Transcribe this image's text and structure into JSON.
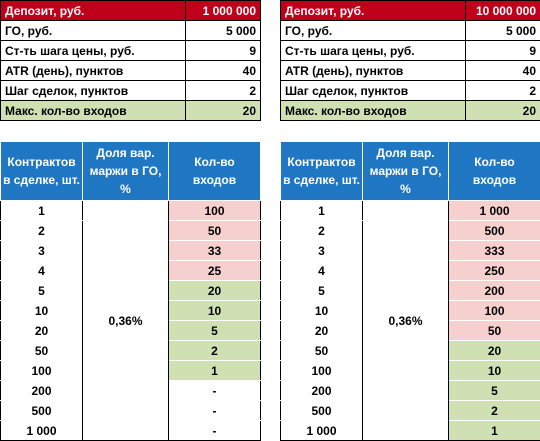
{
  "left": {
    "params": [
      {
        "label": "Депозит, руб.",
        "value": "1 000 000",
        "style": "red"
      },
      {
        "label": "ГО, руб.",
        "value": "5 000",
        "style": "white"
      },
      {
        "label": "Ст-ть шага цены, руб.",
        "value": "9",
        "style": "white"
      },
      {
        "label": "ATR (день), пунктов",
        "value": "40",
        "style": "white"
      },
      {
        "label": "Шаг сделок, пунктов",
        "value": "2",
        "style": "white"
      },
      {
        "label": "Макс. кол-во входов",
        "value": "20",
        "style": "green"
      }
    ],
    "headers": [
      "Контрактов в сделке, шт.",
      "Доля вар. маржи в ГО, %",
      "Кол-во входов"
    ],
    "share": "0,36%",
    "rows": [
      {
        "contracts": "1",
        "entries": "100",
        "color": "red"
      },
      {
        "contracts": "2",
        "entries": "50",
        "color": "red"
      },
      {
        "contracts": "3",
        "entries": "33",
        "color": "red"
      },
      {
        "contracts": "4",
        "entries": "25",
        "color": "red"
      },
      {
        "contracts": "5",
        "entries": "20",
        "color": "green"
      },
      {
        "contracts": "10",
        "entries": "10",
        "color": "green"
      },
      {
        "contracts": "20",
        "entries": "5",
        "color": "green"
      },
      {
        "contracts": "50",
        "entries": "2",
        "color": "green"
      },
      {
        "contracts": "100",
        "entries": "1",
        "color": "green"
      },
      {
        "contracts": "200",
        "entries": "-",
        "color": "plain"
      },
      {
        "contracts": "500",
        "entries": "-",
        "color": "plain"
      },
      {
        "contracts": "1 000",
        "entries": "-",
        "color": "plain"
      }
    ]
  },
  "right": {
    "params": [
      {
        "label": "Депозит, руб.",
        "value": "10 000 000",
        "style": "red"
      },
      {
        "label": "ГО, руб.",
        "value": "5 000",
        "style": "white"
      },
      {
        "label": "Ст-ть шага цены, руб.",
        "value": "9",
        "style": "white"
      },
      {
        "label": "ATR (день), пунктов",
        "value": "40",
        "style": "white"
      },
      {
        "label": "Шаг сделок, пунктов",
        "value": "2",
        "style": "white"
      },
      {
        "label": "Макс. кол-во входов",
        "value": "20",
        "style": "green"
      }
    ],
    "headers": [
      "Контрактов в сделке, шт.",
      "Доля вар. маржи в ГО, %",
      "Кол-во входов"
    ],
    "share": "0,36%",
    "rows": [
      {
        "contracts": "1",
        "entries": "1 000",
        "color": "red"
      },
      {
        "contracts": "2",
        "entries": "500",
        "color": "red"
      },
      {
        "contracts": "3",
        "entries": "333",
        "color": "red"
      },
      {
        "contracts": "4",
        "entries": "250",
        "color": "red"
      },
      {
        "contracts": "5",
        "entries": "200",
        "color": "red"
      },
      {
        "contracts": "10",
        "entries": "100",
        "color": "red"
      },
      {
        "contracts": "20",
        "entries": "50",
        "color": "red"
      },
      {
        "contracts": "50",
        "entries": "20",
        "color": "green"
      },
      {
        "contracts": "100",
        "entries": "10",
        "color": "green"
      },
      {
        "contracts": "200",
        "entries": "5",
        "color": "green"
      },
      {
        "contracts": "500",
        "entries": "2",
        "color": "green"
      },
      {
        "contracts": "1 000",
        "entries": "1",
        "color": "green"
      }
    ]
  }
}
